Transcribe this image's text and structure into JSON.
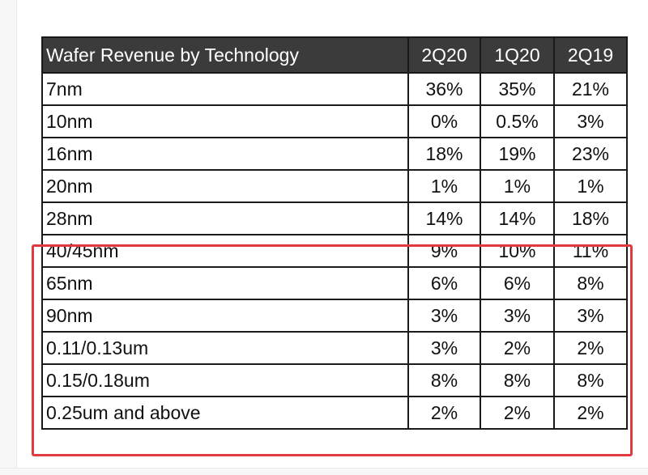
{
  "table": {
    "headers": [
      "Wafer Revenue by Technology",
      "2Q20",
      "1Q20",
      "2Q19"
    ],
    "rows": [
      {
        "tech": "7nm",
        "q2_20": "36%",
        "q1_20": "35%",
        "q2_19": "21%"
      },
      {
        "tech": "10nm",
        "q2_20": "0%",
        "q1_20": "0.5%",
        "q2_19": "3%"
      },
      {
        "tech": "16nm",
        "q2_20": "18%",
        "q1_20": "19%",
        "q2_19": "23%"
      },
      {
        "tech": "20nm",
        "q2_20": "1%",
        "q1_20": "1%",
        "q2_19": "1%"
      },
      {
        "tech": "28nm",
        "q2_20": "14%",
        "q1_20": "14%",
        "q2_19": "18%"
      },
      {
        "tech": "40/45nm",
        "q2_20": "9%",
        "q1_20": "10%",
        "q2_19": "11%"
      },
      {
        "tech": "65nm",
        "q2_20": "6%",
        "q1_20": "6%",
        "q2_19": "8%"
      },
      {
        "tech": "90nm",
        "q2_20": "3%",
        "q1_20": "3%",
        "q2_19": "3%"
      },
      {
        "tech": "0.11/0.13um",
        "q2_20": "3%",
        "q1_20": "2%",
        "q2_19": "2%"
      },
      {
        "tech": "0.15/0.18um",
        "q2_20": "8%",
        "q1_20": "8%",
        "q2_19": "8%"
      },
      {
        "tech": "0.25um and above",
        "q2_20": "2%",
        "q1_20": "2%",
        "q2_19": "2%"
      }
    ]
  },
  "highlight": {
    "color": "#e0393e",
    "covers_rows": [
      "40/45nm",
      "65nm",
      "90nm",
      "0.11/0.13um",
      "0.15/0.18um",
      "0.25um and above"
    ]
  },
  "colors": {
    "header_background": "#3b3b3b",
    "header_text": "#ffffff",
    "border": "#1a1a1a"
  }
}
